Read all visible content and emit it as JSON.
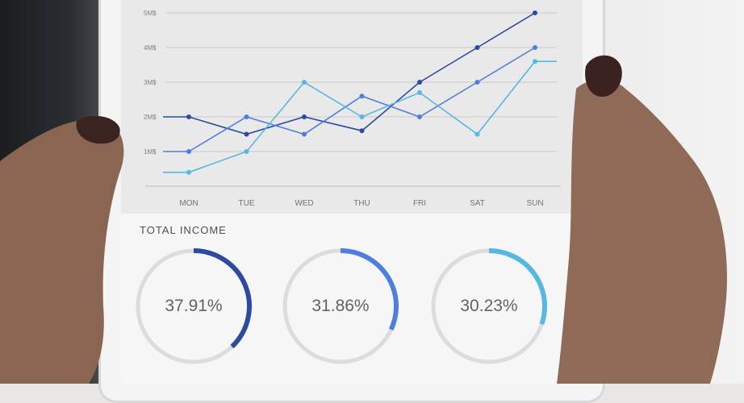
{
  "chart_data": [
    {
      "type": "line",
      "title": "",
      "xlabel": "",
      "ylabel": "",
      "categories": [
        "MON",
        "TUE",
        "WED",
        "THU",
        "FRI",
        "SAT",
        "SUN"
      ],
      "y_ticks": [
        "1M$",
        "2M$",
        "3M$",
        "4M$",
        "5M$"
      ],
      "ylim": [
        0,
        5
      ],
      "grid": true,
      "series": [
        {
          "color": "#2c4aa0",
          "values": [
            2.0,
            1.5,
            2.0,
            1.6,
            3.0,
            4.0,
            5.0
          ]
        },
        {
          "color": "#4f7fdc",
          "values": [
            1.0,
            2.0,
            1.5,
            2.6,
            2.0,
            3.0,
            4.0
          ]
        },
        {
          "color": "#56b7e3",
          "values": [
            0.4,
            1.0,
            3.0,
            2.0,
            2.7,
            1.5,
            3.6
          ]
        }
      ]
    },
    {
      "type": "pie",
      "title": "TOTAL INCOME",
      "values": [
        37.91,
        31.86,
        30.23
      ],
      "labels": [
        "37.91%",
        "31.86%",
        "30.23%"
      ],
      "colors": [
        "#2c4aa0",
        "#4f7fdc",
        "#56b7e3"
      ]
    }
  ],
  "summary": {
    "title": "TOTAL INCOME"
  }
}
